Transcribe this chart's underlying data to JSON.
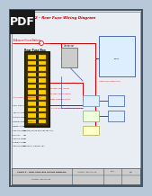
{
  "bg_color": "#b8c8d8",
  "page_bg": "#e8eef4",
  "border_color": "#445566",
  "pdf_bg": "#1a1a1a",
  "pdf_fg": "#ffffff",
  "pdf_label": "PDF",
  "title": "Sheet 2 - Rear Fuse Wiring Diagram",
  "title_color": "#cc0000",
  "red": "#cc0000",
  "blue": "#3355aa",
  "black": "#111111",
  "dark_gray": "#444444",
  "fuse_box_bg": "#2a1a00",
  "fuse_box_border": "#111100",
  "fuse_box_inner": "#3d2e00",
  "breaker_color": "#ffcc00",
  "breaker_edge": "#997700",
  "breaker_strip": "#222200",
  "comp_fill": "#ddeeff",
  "comp_edge": "#6688aa",
  "comp_fill2": "#eeffdd",
  "comp_edge2": "#88aa66",
  "comp_fill3": "#ffeedd",
  "comp_edge3": "#aa8866",
  "right_box_fill": "#ddeeff",
  "right_box_edge": "#3355aa",
  "footer_bg": "#cccccc",
  "footer_border": "#445566",
  "contactor_fill": "#cccccc",
  "contactor_edge": "#666666"
}
